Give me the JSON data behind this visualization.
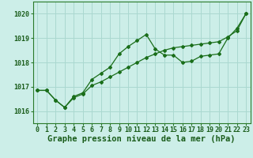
{
  "title": "Graphe pression niveau de la mer (hPa)",
  "xlabel_ticks": [
    0,
    1,
    2,
    3,
    4,
    5,
    6,
    7,
    8,
    9,
    10,
    11,
    12,
    13,
    14,
    15,
    16,
    17,
    18,
    19,
    20,
    21,
    22,
    23
  ],
  "ylim": [
    1015.5,
    1020.5
  ],
  "xlim": [
    -0.5,
    23.5
  ],
  "yticks": [
    1016,
    1017,
    1018,
    1019,
    1020
  ],
  "bg_color": "#cceee8",
  "grid_color": "#aad8d0",
  "line_color": "#1a6e1a",
  "line1_wavy": [
    1016.85,
    1016.85,
    1016.45,
    1016.15,
    1016.6,
    1016.75,
    1017.3,
    1017.55,
    1017.8,
    1018.35,
    1018.65,
    1018.9,
    1019.15,
    1018.55,
    1018.3,
    1018.3,
    1018.0,
    1018.05,
    1018.25,
    1018.3,
    1018.35,
    1019.0,
    1019.4,
    1020.0
  ],
  "line2_straight": [
    1016.85,
    1016.85,
    1016.45,
    1016.15,
    1016.55,
    1016.7,
    1017.05,
    1017.2,
    1017.4,
    1017.6,
    1017.8,
    1018.0,
    1018.2,
    1018.35,
    1018.5,
    1018.6,
    1018.65,
    1018.7,
    1018.75,
    1018.8,
    1018.85,
    1019.05,
    1019.3,
    1020.0
  ],
  "title_fontsize": 7.5,
  "tick_fontsize": 6.0
}
